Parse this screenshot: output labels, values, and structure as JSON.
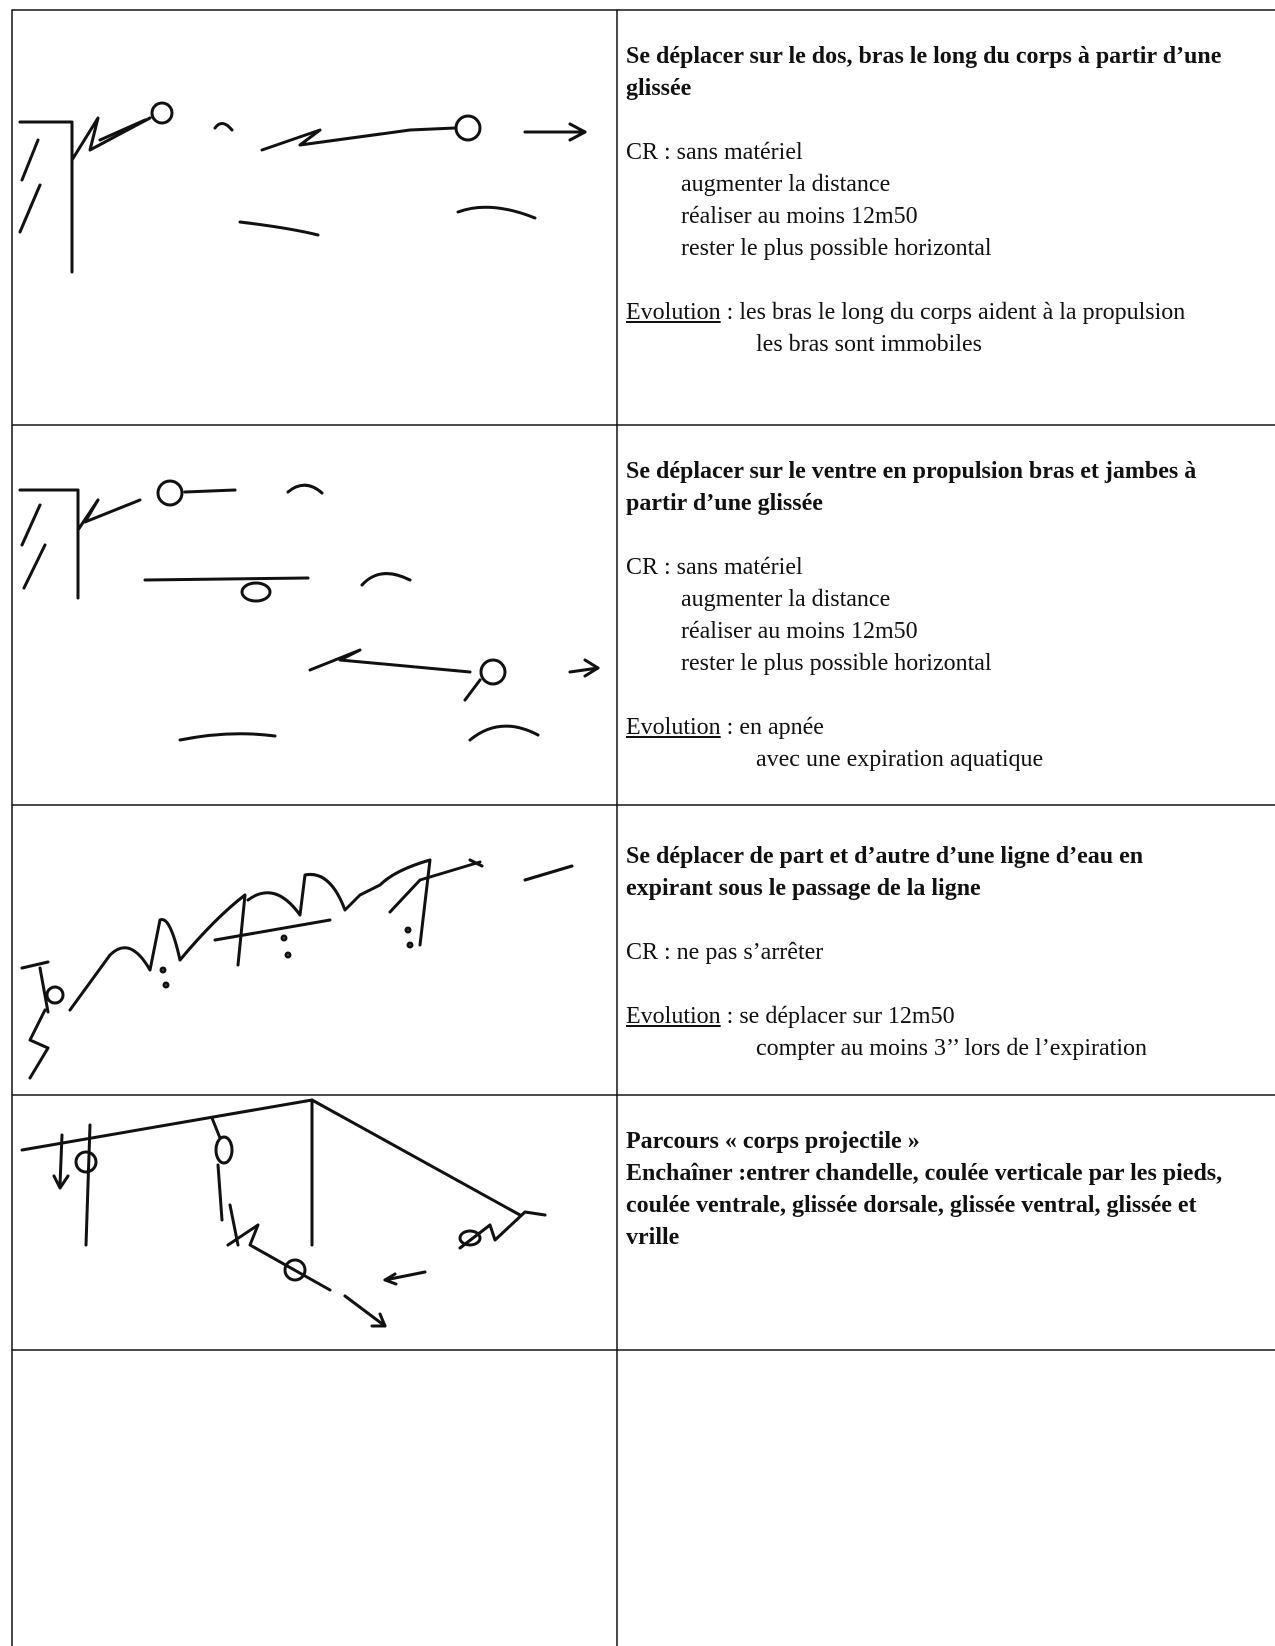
{
  "rows": [
    {
      "title": "Se déplacer sur le dos, bras le long du corps à partir d’une glissée",
      "cr": [
        "CR : sans matériel",
        "augmenter la distance",
        "réaliser au moins 12m50",
        "rester le plus possible horizontal"
      ],
      "evolution": {
        "label": "Evolution",
        "lines": [
          ": les bras le long du corps aident à la propulsion",
          "les bras sont immobiles"
        ]
      }
    },
    {
      "title": "Se déplacer sur le ventre en propulsion bras et jambes à partir d’une glissée",
      "cr": [
        "CR : sans matériel",
        "augmenter la distance",
        "réaliser au moins 12m50",
        "rester le plus possible horizontal"
      ],
      "evolution": {
        "label": "Evolution",
        "lines": [
          ": en apnée",
          "avec une expiration aquatique"
        ]
      }
    },
    {
      "title": "Se déplacer de part et d’autre d’une ligne d’eau en expirant sous le passage de la ligne",
      "cr": [
        "CR : ne pas s’arrêter"
      ],
      "evolution": {
        "label": "Evolution",
        "lines": [
          ": se déplacer sur 12m50",
          "compter au moins 3’’ lors de l’expiration"
        ]
      }
    },
    {
      "title": "Parcours « corps projectile »",
      "instructions": "Enchaîner :entrer chandelle, coulée verticale par les pieds, coulée ventrale, glissée dorsale, glissée ventral, glissée et vrille"
    }
  ]
}
